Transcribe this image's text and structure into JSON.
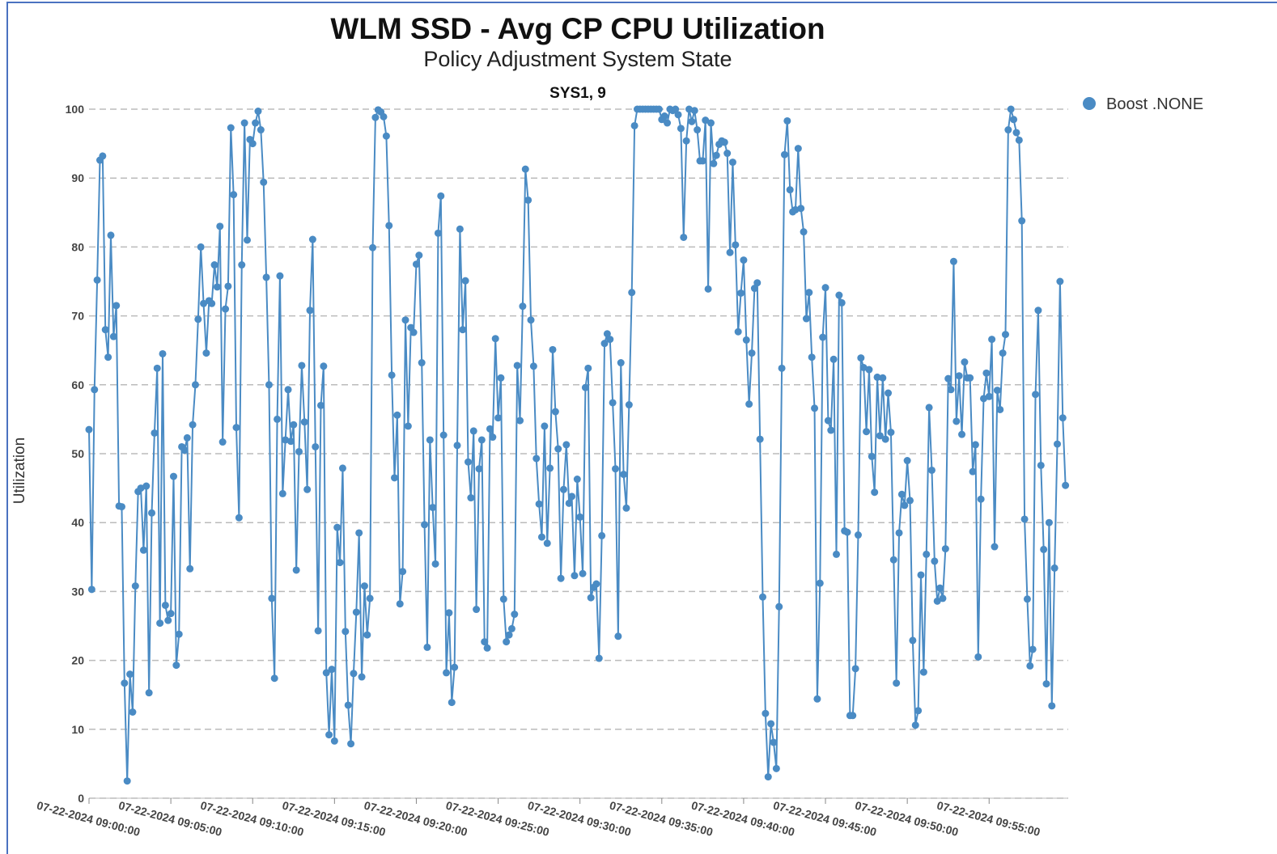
{
  "chart_data": {
    "type": "line",
    "title": "WLM SSD - Avg CP CPU Utilization",
    "subtitle": "Policy Adjustment System State",
    "panel_title": "SYS1, 9",
    "y_label": "Utilization",
    "legend": "top-right",
    "grid": true,
    "ylim": [
      0,
      100
    ],
    "yticks": [
      0,
      10,
      20,
      30,
      40,
      50,
      60,
      70,
      80,
      90,
      100
    ],
    "xlim": [
      "07-22-2024 09:00:00",
      "07-22-2024 09:59:50"
    ],
    "xticks": [
      "07-22-2024 09:00:00",
      "07-22-2024 09:05:00",
      "07-22-2024 09:10:00",
      "07-22-2024 09:15:00",
      "07-22-2024 09:20:00",
      "07-22-2024 09:25:00",
      "07-22-2024 09:30:00",
      "07-22-2024 09:35:00",
      "07-22-2024 09:40:00",
      "07-22-2024 09:45:00",
      "07-22-2024 09:50:00",
      "07-22-2024 09:55:00"
    ],
    "x": [
      "07-22-2024 09:00:00",
      "07-22-2024 09:00:10",
      "07-22-2024 09:00:20",
      "07-22-2024 09:00:30",
      "07-22-2024 09:00:40",
      "07-22-2024 09:00:50",
      "07-22-2024 09:01:00",
      "07-22-2024 09:01:10",
      "07-22-2024 09:01:20",
      "07-22-2024 09:01:30",
      "07-22-2024 09:01:40",
      "07-22-2024 09:01:50",
      "07-22-2024 09:02:00",
      "07-22-2024 09:02:10",
      "07-22-2024 09:02:20",
      "07-22-2024 09:02:30",
      "07-22-2024 09:02:40",
      "07-22-2024 09:02:50",
      "07-22-2024 09:03:00",
      "07-22-2024 09:03:10",
      "07-22-2024 09:03:20",
      "07-22-2024 09:03:30",
      "07-22-2024 09:03:40",
      "07-22-2024 09:03:50",
      "07-22-2024 09:04:00",
      "07-22-2024 09:04:10",
      "07-22-2024 09:04:20",
      "07-22-2024 09:04:30",
      "07-22-2024 09:04:40",
      "07-22-2024 09:04:50",
      "07-22-2024 09:05:00",
      "07-22-2024 09:05:10",
      "07-22-2024 09:05:20",
      "07-22-2024 09:05:30",
      "07-22-2024 09:05:40",
      "07-22-2024 09:05:50",
      "07-22-2024 09:06:00",
      "07-22-2024 09:06:10",
      "07-22-2024 09:06:20",
      "07-22-2024 09:06:30",
      "07-22-2024 09:06:40",
      "07-22-2024 09:06:50",
      "07-22-2024 09:07:00",
      "07-22-2024 09:07:10",
      "07-22-2024 09:07:20",
      "07-22-2024 09:07:30",
      "07-22-2024 09:07:40",
      "07-22-2024 09:07:50",
      "07-22-2024 09:08:00",
      "07-22-2024 09:08:10",
      "07-22-2024 09:08:20",
      "07-22-2024 09:08:30",
      "07-22-2024 09:08:40",
      "07-22-2024 09:08:50",
      "07-22-2024 09:09:00",
      "07-22-2024 09:09:10",
      "07-22-2024 09:09:20",
      "07-22-2024 09:09:30",
      "07-22-2024 09:09:40",
      "07-22-2024 09:09:50",
      "07-22-2024 09:10:00",
      "07-22-2024 09:10:10",
      "07-22-2024 09:10:20",
      "07-22-2024 09:10:30",
      "07-22-2024 09:10:40",
      "07-22-2024 09:10:50",
      "07-22-2024 09:11:00",
      "07-22-2024 09:11:10",
      "07-22-2024 09:11:20",
      "07-22-2024 09:11:30",
      "07-22-2024 09:11:40",
      "07-22-2024 09:11:50",
      "07-22-2024 09:12:00",
      "07-22-2024 09:12:10",
      "07-22-2024 09:12:20",
      "07-22-2024 09:12:30",
      "07-22-2024 09:12:40",
      "07-22-2024 09:12:50",
      "07-22-2024 09:13:00",
      "07-22-2024 09:13:10",
      "07-22-2024 09:13:20",
      "07-22-2024 09:13:30",
      "07-22-2024 09:13:40",
      "07-22-2024 09:13:50",
      "07-22-2024 09:14:00",
      "07-22-2024 09:14:10",
      "07-22-2024 09:14:20",
      "07-22-2024 09:14:30",
      "07-22-2024 09:14:40",
      "07-22-2024 09:14:50",
      "07-22-2024 09:15:00",
      "07-22-2024 09:15:10",
      "07-22-2024 09:15:20",
      "07-22-2024 09:15:30",
      "07-22-2024 09:15:40",
      "07-22-2024 09:15:50",
      "07-22-2024 09:16:00",
      "07-22-2024 09:16:10",
      "07-22-2024 09:16:20",
      "07-22-2024 09:16:30",
      "07-22-2024 09:16:40",
      "07-22-2024 09:16:50",
      "07-22-2024 09:17:00",
      "07-22-2024 09:17:10",
      "07-22-2024 09:17:20",
      "07-22-2024 09:17:30",
      "07-22-2024 09:17:40",
      "07-22-2024 09:17:50",
      "07-22-2024 09:18:00",
      "07-22-2024 09:18:10",
      "07-22-2024 09:18:20",
      "07-22-2024 09:18:30",
      "07-22-2024 09:18:40",
      "07-22-2024 09:18:50",
      "07-22-2024 09:19:00",
      "07-22-2024 09:19:10",
      "07-22-2024 09:19:20",
      "07-22-2024 09:19:30",
      "07-22-2024 09:19:40",
      "07-22-2024 09:19:50",
      "07-22-2024 09:20:00",
      "07-22-2024 09:20:10",
      "07-22-2024 09:20:20",
      "07-22-2024 09:20:30",
      "07-22-2024 09:20:40",
      "07-22-2024 09:20:50",
      "07-22-2024 09:21:00",
      "07-22-2024 09:21:10",
      "07-22-2024 09:21:20",
      "07-22-2024 09:21:30",
      "07-22-2024 09:21:40",
      "07-22-2024 09:21:50",
      "07-22-2024 09:22:00",
      "07-22-2024 09:22:10",
      "07-22-2024 09:22:20",
      "07-22-2024 09:22:30",
      "07-22-2024 09:22:40",
      "07-22-2024 09:22:50",
      "07-22-2024 09:23:00",
      "07-22-2024 09:23:10",
      "07-22-2024 09:23:20",
      "07-22-2024 09:23:30",
      "07-22-2024 09:23:40",
      "07-22-2024 09:23:50",
      "07-22-2024 09:24:00",
      "07-22-2024 09:24:10",
      "07-22-2024 09:24:20",
      "07-22-2024 09:24:30",
      "07-22-2024 09:24:40",
      "07-22-2024 09:24:50",
      "07-22-2024 09:25:00",
      "07-22-2024 09:25:10",
      "07-22-2024 09:25:20",
      "07-22-2024 09:25:30",
      "07-22-2024 09:25:40",
      "07-22-2024 09:25:50",
      "07-22-2024 09:26:00",
      "07-22-2024 09:26:10",
      "07-22-2024 09:26:20",
      "07-22-2024 09:26:30",
      "07-22-2024 09:26:40",
      "07-22-2024 09:26:50",
      "07-22-2024 09:27:00",
      "07-22-2024 09:27:10",
      "07-22-2024 09:27:20",
      "07-22-2024 09:27:30",
      "07-22-2024 09:27:40",
      "07-22-2024 09:27:50",
      "07-22-2024 09:28:00",
      "07-22-2024 09:28:10",
      "07-22-2024 09:28:20",
      "07-22-2024 09:28:30",
      "07-22-2024 09:28:40",
      "07-22-2024 09:28:50",
      "07-22-2024 09:29:00",
      "07-22-2024 09:29:10",
      "07-22-2024 09:29:20",
      "07-22-2024 09:29:30",
      "07-22-2024 09:29:40",
      "07-22-2024 09:29:50",
      "07-22-2024 09:30:00",
      "07-22-2024 09:30:10",
      "07-22-2024 09:30:20",
      "07-22-2024 09:30:30",
      "07-22-2024 09:30:40",
      "07-22-2024 09:30:50",
      "07-22-2024 09:31:00",
      "07-22-2024 09:31:10",
      "07-22-2024 09:31:20",
      "07-22-2024 09:31:30",
      "07-22-2024 09:31:40",
      "07-22-2024 09:31:50",
      "07-22-2024 09:32:00",
      "07-22-2024 09:32:10",
      "07-22-2024 09:32:20",
      "07-22-2024 09:32:30",
      "07-22-2024 09:32:40",
      "07-22-2024 09:32:50",
      "07-22-2024 09:33:00",
      "07-22-2024 09:33:10",
      "07-22-2024 09:33:20",
      "07-22-2024 09:33:30",
      "07-22-2024 09:33:40",
      "07-22-2024 09:33:50",
      "07-22-2024 09:34:00",
      "07-22-2024 09:34:10",
      "07-22-2024 09:34:20",
      "07-22-2024 09:34:30",
      "07-22-2024 09:34:40",
      "07-22-2024 09:34:50",
      "07-22-2024 09:35:00",
      "07-22-2024 09:35:10",
      "07-22-2024 09:35:20",
      "07-22-2024 09:35:30",
      "07-22-2024 09:35:40",
      "07-22-2024 09:35:50",
      "07-22-2024 09:36:00",
      "07-22-2024 09:36:10",
      "07-22-2024 09:36:20",
      "07-22-2024 09:36:30",
      "07-22-2024 09:36:40",
      "07-22-2024 09:36:50",
      "07-22-2024 09:37:00",
      "07-22-2024 09:37:10",
      "07-22-2024 09:37:20",
      "07-22-2024 09:37:30",
      "07-22-2024 09:37:40",
      "07-22-2024 09:37:50",
      "07-22-2024 09:38:00",
      "07-22-2024 09:38:10",
      "07-22-2024 09:38:20",
      "07-22-2024 09:38:30",
      "07-22-2024 09:38:40",
      "07-22-2024 09:38:50",
      "07-22-2024 09:39:00",
      "07-22-2024 09:39:10",
      "07-22-2024 09:39:20",
      "07-22-2024 09:39:30",
      "07-22-2024 09:39:40",
      "07-22-2024 09:39:50",
      "07-22-2024 09:40:00",
      "07-22-2024 09:40:10",
      "07-22-2024 09:40:20",
      "07-22-2024 09:40:30",
      "07-22-2024 09:40:40",
      "07-22-2024 09:40:50",
      "07-22-2024 09:41:00",
      "07-22-2024 09:41:10",
      "07-22-2024 09:41:20",
      "07-22-2024 09:41:30",
      "07-22-2024 09:41:40",
      "07-22-2024 09:41:50",
      "07-22-2024 09:42:00",
      "07-22-2024 09:42:10",
      "07-22-2024 09:42:20",
      "07-22-2024 09:42:30",
      "07-22-2024 09:42:40",
      "07-22-2024 09:42:50",
      "07-22-2024 09:43:00",
      "07-22-2024 09:43:10",
      "07-22-2024 09:43:20",
      "07-22-2024 09:43:30",
      "07-22-2024 09:43:40",
      "07-22-2024 09:43:50",
      "07-22-2024 09:44:00",
      "07-22-2024 09:44:10",
      "07-22-2024 09:44:20",
      "07-22-2024 09:44:30",
      "07-22-2024 09:44:40",
      "07-22-2024 09:44:50",
      "07-22-2024 09:45:00",
      "07-22-2024 09:45:10",
      "07-22-2024 09:45:20",
      "07-22-2024 09:45:30",
      "07-22-2024 09:45:40",
      "07-22-2024 09:45:50",
      "07-22-2024 09:46:00",
      "07-22-2024 09:46:10",
      "07-22-2024 09:46:20",
      "07-22-2024 09:46:30",
      "07-22-2024 09:46:40",
      "07-22-2024 09:46:50",
      "07-22-2024 09:47:00",
      "07-22-2024 09:47:10",
      "07-22-2024 09:47:20",
      "07-22-2024 09:47:30",
      "07-22-2024 09:47:40",
      "07-22-2024 09:47:50",
      "07-22-2024 09:48:00",
      "07-22-2024 09:48:10",
      "07-22-2024 09:48:20",
      "07-22-2024 09:48:30",
      "07-22-2024 09:48:40",
      "07-22-2024 09:48:50",
      "07-22-2024 09:49:00",
      "07-22-2024 09:49:10",
      "07-22-2024 09:49:20",
      "07-22-2024 09:49:30",
      "07-22-2024 09:49:40",
      "07-22-2024 09:49:50",
      "07-22-2024 09:50:00",
      "07-22-2024 09:50:10",
      "07-22-2024 09:50:20",
      "07-22-2024 09:50:30",
      "07-22-2024 09:50:40",
      "07-22-2024 09:50:50",
      "07-22-2024 09:51:00",
      "07-22-2024 09:51:10",
      "07-22-2024 09:51:20",
      "07-22-2024 09:51:30",
      "07-22-2024 09:51:40",
      "07-22-2024 09:51:50",
      "07-22-2024 09:52:00",
      "07-22-2024 09:52:10",
      "07-22-2024 09:52:20",
      "07-22-2024 09:52:30",
      "07-22-2024 09:52:40",
      "07-22-2024 09:52:50",
      "07-22-2024 09:53:00",
      "07-22-2024 09:53:10",
      "07-22-2024 09:53:20",
      "07-22-2024 09:53:30",
      "07-22-2024 09:53:40",
      "07-22-2024 09:53:50",
      "07-22-2024 09:54:00",
      "07-22-2024 09:54:10",
      "07-22-2024 09:54:20",
      "07-22-2024 09:54:30",
      "07-22-2024 09:54:40",
      "07-22-2024 09:54:50",
      "07-22-2024 09:55:00",
      "07-22-2024 09:55:10",
      "07-22-2024 09:55:20",
      "07-22-2024 09:55:30",
      "07-22-2024 09:55:40",
      "07-22-2024 09:55:50",
      "07-22-2024 09:56:00",
      "07-22-2024 09:56:10",
      "07-22-2024 09:56:20",
      "07-22-2024 09:56:30",
      "07-22-2024 09:56:40",
      "07-22-2024 09:56:50",
      "07-22-2024 09:57:00",
      "07-22-2024 09:57:10",
      "07-22-2024 09:57:20",
      "07-22-2024 09:57:30",
      "07-22-2024 09:57:40",
      "07-22-2024 09:57:50",
      "07-22-2024 09:58:00",
      "07-22-2024 09:58:10",
      "07-22-2024 09:58:20",
      "07-22-2024 09:58:30",
      "07-22-2024 09:58:40",
      "07-22-2024 09:58:50",
      "07-22-2024 09:59:00",
      "07-22-2024 09:59:10",
      "07-22-2024 09:59:20",
      "07-22-2024 09:59:30",
      "07-22-2024 09:59:40"
    ],
    "series": [
      {
        "name": "Boost .NONE",
        "color": "#4a8bc4",
        "values": [
          53.5,
          30.3,
          59.3,
          75.2,
          92.6,
          93.2,
          68,
          64,
          81.7,
          67,
          71.5,
          42.4,
          42.3,
          16.7,
          2.5,
          18,
          12.5,
          30.8,
          44.5,
          45,
          36,
          45.3,
          15.3,
          41.4,
          53,
          62.4,
          25.4,
          64.5,
          28,
          25.8,
          26.8,
          46.7,
          19.3,
          23.8,
          51,
          50.5,
          52.3,
          33.3,
          54.2,
          60,
          69.5,
          80,
          71.8,
          64.6,
          72.2,
          71.8,
          77.4,
          74.2,
          83,
          51.7,
          71,
          74.3,
          97.3,
          87.6,
          53.8,
          40.7,
          77.4,
          98,
          81,
          95.6,
          95,
          98,
          99.7,
          97,
          89.4,
          75.6,
          60,
          29,
          17.4,
          55,
          75.8,
          44.2,
          52,
          59.3,
          51.8,
          54.2,
          33.1,
          50.3,
          62.8,
          54.6,
          44.8,
          70.8,
          81.1,
          51,
          24.3,
          57,
          62.7,
          18.2,
          9.2,
          18.7,
          8.3,
          39.3,
          34.2,
          47.9,
          24.2,
          13.5,
          7.9,
          18.1,
          27,
          38.5,
          17.6,
          30.8,
          23.7,
          29,
          79.9,
          98.8,
          99.9,
          99.6,
          98.9,
          96.1,
          83.1,
          61.4,
          46.5,
          55.6,
          28.2,
          32.9,
          69.4,
          54,
          68.3,
          67.6,
          77.5,
          78.8,
          63.2,
          39.7,
          21.9,
          52,
          42.2,
          34,
          82,
          87.4,
          52.7,
          18.2,
          26.9,
          13.9,
          19,
          51.2,
          82.6,
          68,
          75.1,
          48.8,
          43.6,
          53.3,
          27.4,
          47.8,
          52,
          22.7,
          21.8,
          53.6,
          52.4,
          66.7,
          55.2,
          61,
          28.9,
          22.7,
          23.7,
          24.6,
          26.7,
          62.8,
          54.8,
          71.4,
          91.3,
          86.8,
          69.4,
          62.7,
          49.3,
          42.7,
          37.9,
          54,
          37,
          47.9,
          65.1,
          56.1,
          50.7,
          31.9,
          44.8,
          51.3,
          42.8,
          43.8,
          32.3,
          46.3,
          40.8,
          32.6,
          59.6,
          62.4,
          29.1,
          30.6,
          31.1,
          20.3,
          38.1,
          66,
          67.4,
          66.6,
          57.4,
          47.8,
          23.5,
          63.2,
          47,
          42.1,
          57.1,
          73.4,
          97.6,
          100,
          100,
          100,
          100,
          100,
          100,
          100,
          100,
          100,
          98.5,
          99,
          98,
          100,
          99.8,
          100,
          99.2,
          97.2,
          81.4,
          95.4,
          100,
          98.2,
          99.8,
          97,
          92.5,
          92.5,
          98.4,
          73.9,
          98,
          92.1,
          93.3,
          94.9,
          95.4,
          95.2,
          93.6,
          79.2,
          92.3,
          80.3,
          67.7,
          73.3,
          78.1,
          66.5,
          57.2,
          64.6,
          74,
          74.8,
          52.1,
          29.2,
          12.3,
          3.1,
          10.8,
          8.1,
          4.3,
          27.8,
          62.4,
          93.4,
          98.3,
          88.3,
          85.1,
          85.4,
          94.3,
          85.6,
          82.2,
          69.6,
          73.4,
          64,
          56.6,
          14.4,
          31.2,
          66.9,
          74.1,
          54.8,
          53.4,
          63.7,
          35.4,
          73,
          71.9,
          38.8,
          38.6,
          12,
          12,
          18.8,
          38.2,
          63.9,
          62.5,
          53.2,
          62.2,
          49.6,
          44.4,
          61.1,
          52.6,
          61,
          52.1,
          58.8,
          53.1,
          34.6,
          16.7,
          38.5,
          44.1,
          42.5,
          49,
          43.2,
          22.9,
          10.6,
          12.7,
          32.4,
          18.3,
          35.4,
          56.7,
          47.6,
          34.4,
          28.6,
          30.5,
          29,
          36.2,
          60.9,
          59.3,
          77.9,
          54.7,
          61.3,
          52.8,
          63.3,
          61,
          61,
          47.4,
          51.3,
          20.5,
          43.4,
          58,
          61.7,
          58.3,
          66.6,
          36.5,
          59.2,
          56.4,
          64.6,
          67.3,
          97,
          100,
          98.5,
          96.6,
          95.5,
          83.8,
          40.5,
          28.9,
          19.2,
          21.6,
          58.6,
          70.8,
          48.3,
          36.1,
          16.6,
          40,
          13.4,
          33.4,
          51.4,
          75,
          55.2,
          45.4
        ]
      }
    ]
  }
}
